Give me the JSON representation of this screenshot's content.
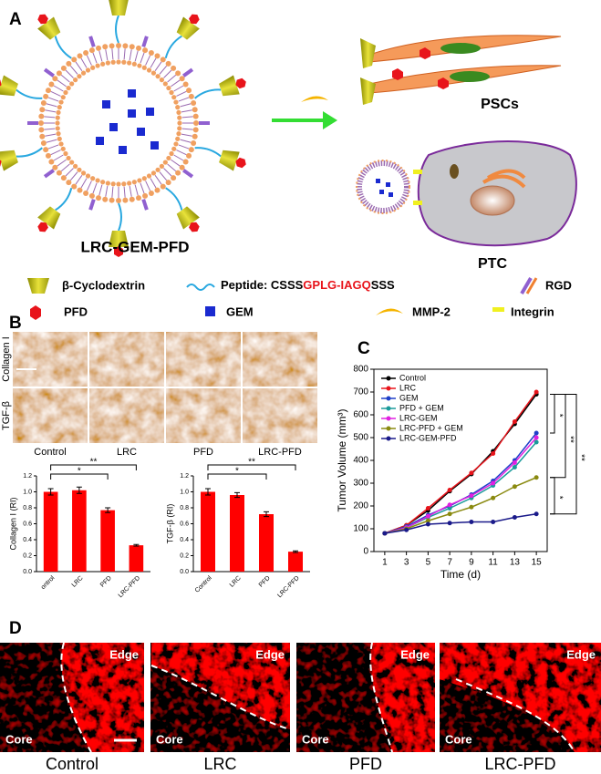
{
  "panels": {
    "a": "A",
    "b": "B",
    "c": "C",
    "d": "D"
  },
  "panel_a": {
    "construct": "LRC-GEM-PFD",
    "psc": "PSCs",
    "ptc": "PTC",
    "legend": {
      "cyclodextrin": "β-Cyclodextrin",
      "peptide_prefix": "Peptide: CSSS",
      "peptide_cleavage": "GPLG-IAGQ",
      "peptide_suffix": "SSS",
      "rgd": "RGD",
      "pfd": "PFD",
      "gem": "GEM",
      "mmp2": "MMP-2",
      "integrin": "Integrin"
    }
  },
  "panel_b": {
    "rows": [
      "Collagen I",
      "TGF-β"
    ],
    "columns": [
      "Control",
      "LRC",
      "PFD",
      "LRC-PFD"
    ]
  },
  "panel_d": {
    "edge": "Edge",
    "core": "Core",
    "labels": [
      "Control",
      "LRC",
      "PFD",
      "LRC-PFD"
    ]
  },
  "chart_data": [
    {
      "type": "bar",
      "y_label": "Collagen I (RI)",
      "categories": [
        "ontrol",
        "LRC",
        "PFD",
        "LRC-PFD"
      ],
      "values": [
        1.0,
        1.02,
        0.77,
        0.33
      ],
      "errors": [
        0.04,
        0.04,
        0.03,
        0.01
      ],
      "color": "#ff0000",
      "ylim": [
        0,
        1.2
      ],
      "yticks": [
        {
          "value": 0,
          "label": "0.0"
        },
        {
          "value": 0.2,
          "label": "0.2"
        },
        {
          "value": 0.4,
          "label": "0.4"
        },
        {
          "value": 0.6,
          "label": "0.6"
        },
        {
          "value": 0.8,
          "label": "0.8"
        },
        {
          "value": 1,
          "label": "1.0"
        },
        {
          "value": 1.2,
          "label": "1.2"
        }
      ],
      "significance": [
        "*",
        "**"
      ]
    },
    {
      "type": "bar",
      "y_label": "TGF-β (RI)",
      "categories": [
        "Control",
        "LRC",
        "PFD",
        "LRC-PFD"
      ],
      "values": [
        1.0,
        0.96,
        0.72,
        0.25
      ],
      "errors": [
        0.04,
        0.03,
        0.03,
        0.01
      ],
      "color": "#ff0000",
      "ylim": [
        0,
        1.2
      ],
      "yticks": [
        {
          "value": 0,
          "label": "0.0"
        },
        {
          "value": 0.2,
          "label": "0.2"
        },
        {
          "value": 0.4,
          "label": "0.4"
        },
        {
          "value": 0.6,
          "label": "0.6"
        },
        {
          "value": 0.8,
          "label": "0.8"
        },
        {
          "value": 1,
          "label": "1.0"
        },
        {
          "value": 1.2,
          "label": "1.2"
        }
      ],
      "significance": [
        "*",
        "**"
      ]
    },
    {
      "type": "line",
      "x_label": "Time (d)",
      "y_label": "Tumor Volume (mm³)",
      "x": [
        1,
        3,
        5,
        7,
        9,
        11,
        13,
        15
      ],
      "xlim": [
        0,
        16
      ],
      "xticks": [
        1,
        3,
        5,
        7,
        9,
        11,
        13,
        15
      ],
      "ylim": [
        0,
        800
      ],
      "yticks": [
        0,
        100,
        200,
        300,
        400,
        500,
        600,
        700,
        800
      ],
      "series": [
        {
          "name": "Control",
          "color": "#000000",
          "values": [
            80,
            115,
            180,
            265,
            340,
            440,
            560,
            690
          ]
        },
        {
          "name": "LRC",
          "color": "#e8141b",
          "values": [
            80,
            115,
            190,
            270,
            345,
            430,
            570,
            700
          ]
        },
        {
          "name": "GEM",
          "color": "#1f3fc8",
          "values": [
            80,
            110,
            160,
            200,
            250,
            310,
            400,
            520
          ]
        },
        {
          "name": "PFD + GEM",
          "color": "#1a9a9a",
          "values": [
            80,
            105,
            150,
            190,
            235,
            290,
            370,
            480
          ]
        },
        {
          "name": "LRC-GEM",
          "color": "#e020e0",
          "values": [
            80,
            105,
            155,
            205,
            245,
            300,
            390,
            500
          ]
        },
        {
          "name": "LRC-PFD + GEM",
          "color": "#8a8a10",
          "values": [
            80,
            100,
            135,
            165,
            195,
            235,
            285,
            325
          ]
        },
        {
          "name": "LRC-GEM-PFD",
          "color": "#1a1a8a",
          "values": [
            80,
            95,
            120,
            125,
            130,
            130,
            150,
            165
          ]
        }
      ],
      "significance": [
        "*",
        "**",
        "**",
        "*"
      ]
    }
  ]
}
